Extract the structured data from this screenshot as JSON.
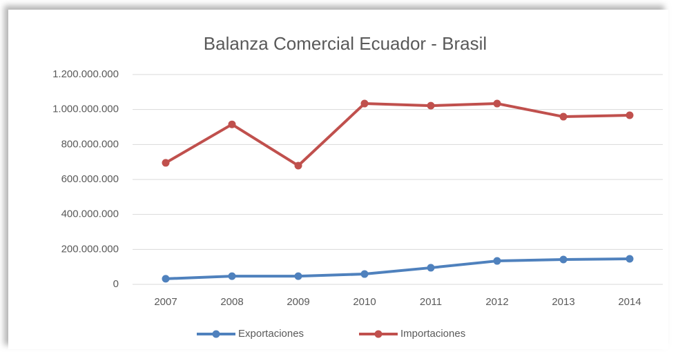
{
  "chart_data": {
    "type": "line",
    "title": "Balanza Comercial Ecuador - Brasil",
    "categories": [
      "2007",
      "2008",
      "2009",
      "2010",
      "2011",
      "2012",
      "2013",
      "2014"
    ],
    "series": [
      {
        "name": "Exportaciones",
        "color": "#4f81bd",
        "values": [
          32000000,
          47000000,
          47000000,
          59000000,
          95000000,
          134000000,
          142000000,
          146000000
        ]
      },
      {
        "name": "Importaciones",
        "color": "#c0504d",
        "values": [
          695000000,
          915000000,
          679000000,
          1034000000,
          1022000000,
          1034000000,
          959000000,
          967000000
        ]
      }
    ],
    "ylim": [
      0,
      1200000000
    ],
    "yticks": [
      0,
      {
        "value": 200000000,
        "label": "200.000.000"
      },
      {
        "value": 400000000,
        "label": "400.000.000"
      },
      {
        "value": 600000000,
        "label": "600.000.000"
      },
      {
        "value": 800000000,
        "label": "800.000.000"
      },
      {
        "value": 1000000000,
        "label": "1.000.000.000"
      },
      {
        "value": 1200000000,
        "label": "1.200.000.000"
      }
    ],
    "grid": true,
    "legend": "bottom"
  }
}
